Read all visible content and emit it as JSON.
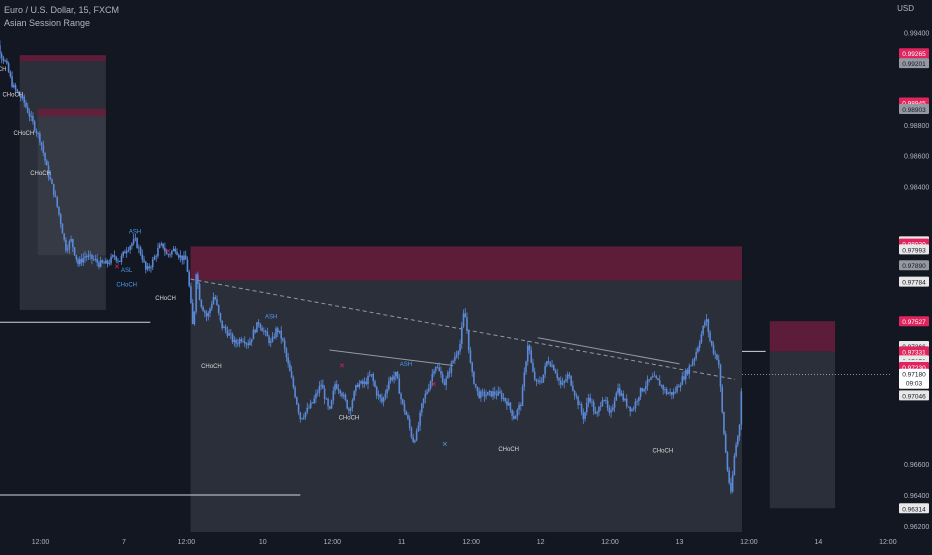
{
  "header": {
    "symbol": "Euro / U.S. Dollar, 15, FXCM",
    "indicator": "Asian Session Range",
    "currency": "USD"
  },
  "colors": {
    "background": "#131722",
    "candle": "#5b8ad8",
    "supply_zone": "#6b1e3c",
    "range_box": "#3f434f",
    "ms_label": "#d8d8d8",
    "bull_label": "#4d9cf0",
    "bear_label": "#e0245e",
    "trendline": "#9598a1",
    "price_label_red": "#e0245e",
    "price_label_white": "#e8e8e8",
    "price_label_grey": "#9598a1",
    "current_price_label": "#ffffff"
  },
  "chart_data": {
    "type": "candlestick",
    "title": "Euro / U.S. Dollar, 15, FXCM",
    "ylim": [
      0.9616,
      0.9961
    ],
    "y_ticks": [
      "0.99400",
      "0.98800",
      "0.98600",
      "0.98400",
      "0.98000",
      "0.97800",
      "0.96600",
      "0.96400",
      "0.96200"
    ],
    "x_ticks": [
      {
        "label": "12:00",
        "session": 0.4
      },
      {
        "label": "7",
        "session": 1.0
      },
      {
        "label": "12:00",
        "session": 1.45
      },
      {
        "label": "10",
        "session": 2.0
      },
      {
        "label": "12:00",
        "session": 2.5
      },
      {
        "label": "11",
        "session": 3.0
      },
      {
        "label": "12:00",
        "session": 3.5
      },
      {
        "label": "12",
        "session": 4.0
      },
      {
        "label": "12:00",
        "session": 4.5
      },
      {
        "label": "13",
        "session": 5.0
      },
      {
        "label": "12:00",
        "session": 5.5
      },
      {
        "label": "14",
        "session": 6.0
      },
      {
        "label": "12:00",
        "session": 6.5
      }
    ],
    "price_path": [
      [
        0.02,
        0.9933
      ],
      [
        0.08,
        0.9935
      ],
      [
        0.12,
        0.9925
      ],
      [
        0.15,
        0.992
      ],
      [
        0.2,
        0.9905
      ],
      [
        0.28,
        0.9895
      ],
      [
        0.35,
        0.988
      ],
      [
        0.4,
        0.987
      ],
      [
        0.45,
        0.985
      ],
      [
        0.5,
        0.9835
      ],
      [
        0.55,
        0.9815
      ],
      [
        0.58,
        0.98
      ],
      [
        0.62,
        0.9805
      ],
      [
        0.67,
        0.979
      ],
      [
        0.72,
        0.9795
      ],
      [
        0.78,
        0.9793
      ],
      [
        0.82,
        0.979
      ],
      [
        0.88,
        0.979
      ],
      [
        0.93,
        0.9795
      ],
      [
        0.97,
        0.9792
      ],
      [
        1.02,
        0.98
      ],
      [
        1.08,
        0.9805
      ],
      [
        1.13,
        0.9795
      ],
      [
        1.16,
        0.9785
      ],
      [
        1.2,
        0.979
      ],
      [
        1.25,
        0.98
      ],
      [
        1.28,
        0.9802
      ],
      [
        1.31,
        0.9795
      ],
      [
        1.37,
        0.98
      ],
      [
        1.4,
        0.9795
      ],
      [
        1.45,
        0.9792
      ],
      [
        1.47,
        0.9775
      ],
      [
        1.5,
        0.9745
      ],
      [
        1.52,
        0.9785
      ],
      [
        1.55,
        0.9765
      ],
      [
        1.6,
        0.9755
      ],
      [
        1.65,
        0.977
      ],
      [
        1.7,
        0.975
      ],
      [
        1.75,
        0.9745
      ],
      [
        1.8,
        0.9738
      ],
      [
        1.85,
        0.9742
      ],
      [
        1.9,
        0.9738
      ],
      [
        1.93,
        0.9745
      ],
      [
        1.97,
        0.9752
      ],
      [
        2.02,
        0.9744
      ],
      [
        2.06,
        0.9738
      ],
      [
        2.1,
        0.9748
      ],
      [
        2.14,
        0.9741
      ],
      [
        2.18,
        0.9725
      ],
      [
        2.22,
        0.971
      ],
      [
        2.27,
        0.969
      ],
      [
        2.32,
        0.9695
      ],
      [
        2.36,
        0.97
      ],
      [
        2.42,
        0.9712
      ],
      [
        2.48,
        0.9693
      ],
      [
        2.52,
        0.9712
      ],
      [
        2.56,
        0.9708
      ],
      [
        2.62,
        0.9695
      ],
      [
        2.68,
        0.9712
      ],
      [
        2.73,
        0.9712
      ],
      [
        2.78,
        0.9718
      ],
      [
        2.82,
        0.9706
      ],
      [
        2.86,
        0.97
      ],
      [
        2.91,
        0.9715
      ],
      [
        2.96,
        0.9718
      ],
      [
        3.0,
        0.97
      ],
      [
        3.04,
        0.969
      ],
      [
        3.08,
        0.9675
      ],
      [
        3.11,
        0.968
      ],
      [
        3.15,
        0.97
      ],
      [
        3.2,
        0.9712
      ],
      [
        3.24,
        0.9725
      ],
      [
        3.28,
        0.9718
      ],
      [
        3.31,
        0.9712
      ],
      [
        3.36,
        0.9725
      ],
      [
        3.42,
        0.9738
      ],
      [
        3.45,
        0.976
      ],
      [
        3.47,
        0.9747
      ],
      [
        3.5,
        0.972
      ],
      [
        3.55,
        0.9705
      ],
      [
        3.61,
        0.9705
      ],
      [
        3.66,
        0.9706
      ],
      [
        3.71,
        0.9705
      ],
      [
        3.76,
        0.97
      ],
      [
        3.81,
        0.969
      ],
      [
        3.86,
        0.97
      ],
      [
        3.91,
        0.974
      ],
      [
        3.94,
        0.972
      ],
      [
        3.97,
        0.9712
      ],
      [
        4.01,
        0.9715
      ],
      [
        4.05,
        0.9728
      ],
      [
        4.1,
        0.9722
      ],
      [
        4.15,
        0.971
      ],
      [
        4.2,
        0.9718
      ],
      [
        4.25,
        0.9705
      ],
      [
        4.31,
        0.969
      ],
      [
        4.35,
        0.9705
      ],
      [
        4.4,
        0.969
      ],
      [
        4.45,
        0.9705
      ],
      [
        4.5,
        0.969
      ],
      [
        4.55,
        0.971
      ],
      [
        4.61,
        0.97
      ],
      [
        4.66,
        0.9695
      ],
      [
        4.71,
        0.9706
      ],
      [
        4.76,
        0.9712
      ],
      [
        4.81,
        0.9716
      ],
      [
        4.86,
        0.9712
      ],
      [
        4.91,
        0.9706
      ],
      [
        4.96,
        0.9706
      ],
      [
        5.01,
        0.9714
      ],
      [
        5.06,
        0.9721
      ],
      [
        5.11,
        0.973
      ],
      [
        5.16,
        0.9745
      ],
      [
        5.19,
        0.9755
      ],
      [
        5.22,
        0.974
      ],
      [
        5.25,
        0.9732
      ],
      [
        5.28,
        0.9728
      ],
      [
        5.31,
        0.969
      ],
      [
        5.34,
        0.966
      ],
      [
        5.37,
        0.964
      ],
      [
        5.4,
        0.967
      ],
      [
        5.43,
        0.9682
      ],
      [
        5.45,
        0.9718
      ]
    ],
    "zones": [
      {
        "kind": "supply",
        "x0": 0.25,
        "x1": 0.87,
        "y0": 0.99252,
        "y1": 0.99212
      },
      {
        "kind": "range",
        "x0": 0.25,
        "x1": 0.87,
        "y0": 0.99212,
        "y1": 0.976
      },
      {
        "kind": "supply",
        "x0": 0.38,
        "x1": 0.87,
        "y0": 0.98905,
        "y1": 0.98855
      },
      {
        "kind": "range",
        "x0": 0.38,
        "x1": 0.87,
        "y0": 0.98855,
        "y1": 0.97955
      },
      {
        "kind": "supply",
        "x0": 1.48,
        "x1": 5.45,
        "y0": 0.98012,
        "y1": 0.9779
      },
      {
        "kind": "range",
        "x0": 1.48,
        "x1": 5.45,
        "y0": 0.9779,
        "y1": 0.9616
      },
      {
        "kind": "supply",
        "x0": 5.65,
        "x1": 6.12,
        "y0": 0.97527,
        "y1": 0.97331
      },
      {
        "kind": "range",
        "x0": 5.65,
        "x1": 6.12,
        "y0": 0.97331,
        "y1": 0.96314
      }
    ],
    "lines": [
      {
        "x0": 0.0,
        "x1": 1.19,
        "y": 0.9752
      },
      {
        "x0": 0.0,
        "x1": 2.27,
        "y": 0.964
      },
      {
        "x0": 5.45,
        "x1": 5.62,
        "y": 0.97331
      }
    ],
    "trendlines": [
      {
        "x0": 1.48,
        "y0": 0.978,
        "x1": 5.4,
        "y1": 0.9715,
        "dashed": true
      },
      {
        "x0": 2.48,
        "y0": 0.9734,
        "x1": 3.37,
        "y1": 0.9724,
        "dashed": false
      },
      {
        "x0": 3.98,
        "y0": 0.9742,
        "x1": 5.0,
        "y1": 0.9725,
        "dashed": false
      }
    ],
    "labels": [
      {
        "text": "CHoCH",
        "x": 0.08,
        "y": 0.9915,
        "type": "ms"
      },
      {
        "text": "CHoCH",
        "x": 0.2,
        "y": 0.98985,
        "type": "ms"
      },
      {
        "text": "CHoCH",
        "x": 0.28,
        "y": 0.98735,
        "type": "ms"
      },
      {
        "text": "CHoCH",
        "x": 0.4,
        "y": 0.98475,
        "type": "ms"
      },
      {
        "text": "ASH",
        "x": 1.08,
        "y": 0.98095,
        "type": "bull"
      },
      {
        "text": "ASL",
        "x": 1.02,
        "y": 0.97845,
        "type": "bull"
      },
      {
        "text": "CHoCH",
        "x": 1.02,
        "y": 0.97752,
        "type": "bull"
      },
      {
        "text": "CHoCH",
        "x": 1.3,
        "y": 0.97665,
        "type": "ms"
      },
      {
        "text": "CHoCH",
        "x": 1.63,
        "y": 0.97225,
        "type": "ms"
      },
      {
        "text": "ASH",
        "x": 2.06,
        "y": 0.97545,
        "type": "bull"
      },
      {
        "text": "CHoCH",
        "x": 2.62,
        "y": 0.96888,
        "type": "ms"
      },
      {
        "text": "ASH",
        "x": 3.03,
        "y": 0.97235,
        "type": "bull"
      },
      {
        "text": "CHoCH",
        "x": 3.77,
        "y": 0.96685,
        "type": "ms"
      },
      {
        "text": "CHoCH",
        "x": 4.88,
        "y": 0.96675,
        "type": "ms"
      }
    ],
    "markers": [
      {
        "text": "✕",
        "x": 0.95,
        "y": 0.97865,
        "type": "bear"
      },
      {
        "text": "✕",
        "x": 1.32,
        "y": 0.97965,
        "type": "bear"
      },
      {
        "text": "✕",
        "x": 2.57,
        "y": 0.97225,
        "type": "bear"
      },
      {
        "text": "✕",
        "x": 3.23,
        "y": 0.97105,
        "type": "bear"
      },
      {
        "text": "✕",
        "x": 3.31,
        "y": 0.96715,
        "type": "bull"
      }
    ],
    "price_labels": [
      {
        "value": "0.99265",
        "style": "red"
      },
      {
        "value": "0.99201",
        "style": "grey"
      },
      {
        "value": "0.98945",
        "style": "red"
      },
      {
        "value": "0.98903",
        "style": "grey"
      },
      {
        "value": "0.98045",
        "style": "red"
      },
      {
        "value": "0.98045",
        "style": "white"
      },
      {
        "value": "0.98030",
        "style": "red"
      },
      {
        "value": "0.97993",
        "style": "white"
      },
      {
        "value": "0.97890",
        "style": "grey"
      },
      {
        "value": "0.97784",
        "style": "white"
      },
      {
        "value": "0.97527",
        "style": "red"
      },
      {
        "value": "0.97366",
        "style": "white"
      },
      {
        "value": "0.97331",
        "style": "red"
      },
      {
        "value": "0.97273",
        "style": "white"
      },
      {
        "value": "0.97246",
        "style": "white"
      },
      {
        "value": "0.97230",
        "style": "red"
      },
      {
        "value": "0.97150",
        "style": "white"
      },
      {
        "value": "0.97142",
        "style": "grey"
      },
      {
        "value": "0.97046",
        "style": "white"
      },
      {
        "value": "0.96314",
        "style": "white"
      }
    ],
    "current_price": {
      "value": "0.97180",
      "timer": "09:03"
    }
  }
}
